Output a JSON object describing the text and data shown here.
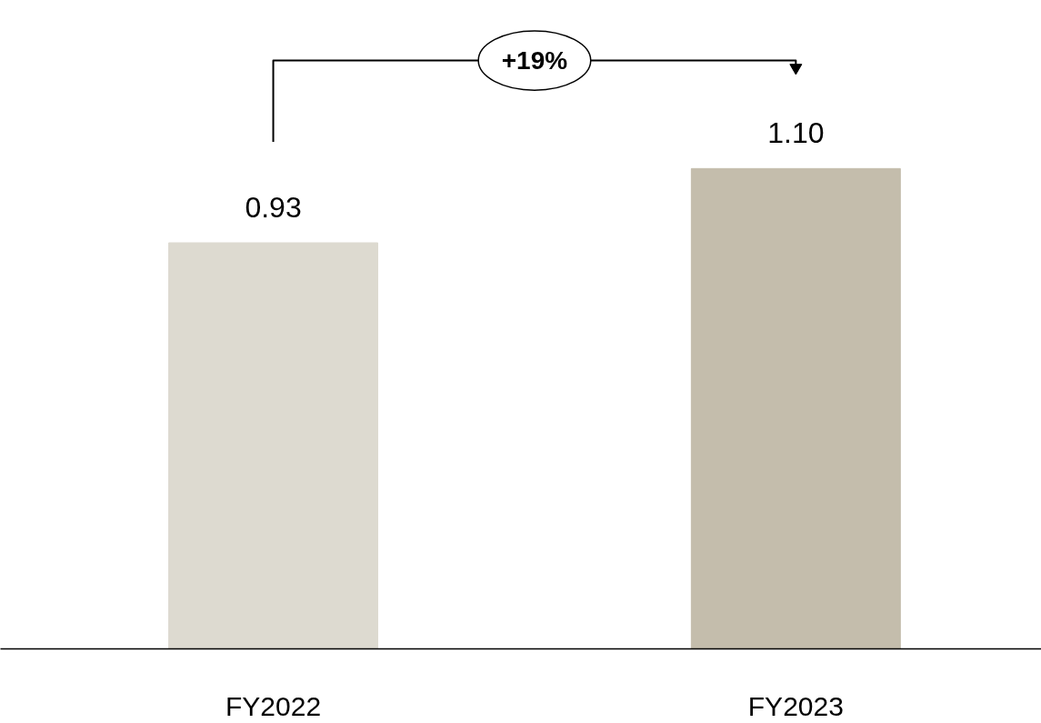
{
  "chart_data": {
    "type": "bar",
    "categories": [
      "FY2022",
      "FY2023"
    ],
    "values": [
      0.93,
      1.1
    ],
    "colors": [
      "#dddad0",
      "#c4bdac"
    ],
    "value_labels": [
      "0.93",
      "1.10"
    ],
    "tick_labels": "x",
    "annotations": [
      "+19%"
    ]
  }
}
